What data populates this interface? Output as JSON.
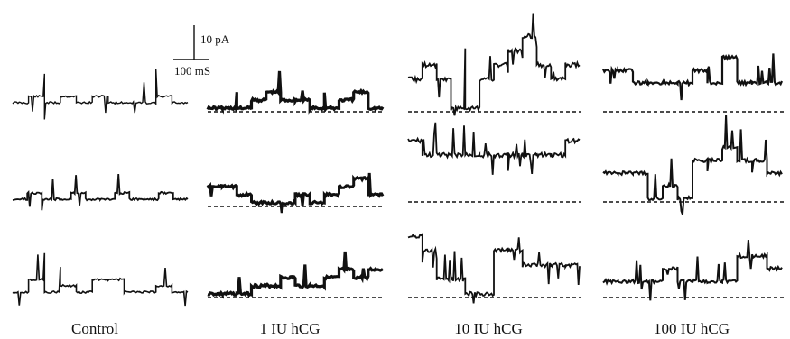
{
  "scale_bar": {
    "current_label": "10 pA",
    "time_label": "100 mS"
  },
  "columns": [
    {
      "id": "control",
      "label": "Control",
      "traces": [
        {
          "seed": 11,
          "levels": [
            0,
            1,
            0,
            1,
            0,
            1,
            0,
            0,
            0,
            1,
            0
          ],
          "spikes": 7,
          "noise": 1.2,
          "closed_line": false,
          "width": 1.4
        },
        {
          "seed": 23,
          "levels": [
            0,
            1,
            0,
            0,
            1,
            0,
            0,
            1,
            0,
            0,
            1,
            0
          ],
          "spikes": 6,
          "noise": 1.2,
          "closed_line": false,
          "width": 1.8
        },
        {
          "seed": 37,
          "levels": [
            0,
            2,
            0,
            1,
            0,
            2,
            2,
            0,
            0,
            1,
            0
          ],
          "spikes": 6,
          "noise": 1.2,
          "closed_line": false,
          "width": 1.6
        }
      ]
    },
    {
      "id": "iu1",
      "label": "1 IU hCG",
      "traces": [
        {
          "seed": 41,
          "levels": [
            0,
            0,
            0,
            1,
            2,
            1,
            1,
            0,
            0,
            1,
            2,
            0
          ],
          "spikes": 4,
          "noise": 1.6,
          "closed_line": true,
          "width": 3.2
        },
        {
          "seed": 53,
          "levels": [
            2,
            2,
            1,
            0,
            0,
            0,
            1,
            0,
            1,
            2,
            3,
            1
          ],
          "spikes": 4,
          "noise": 1.6,
          "closed_line": true,
          "width": 3.0
        },
        {
          "seed": 67,
          "levels": [
            0,
            0,
            0,
            1,
            1,
            2,
            1,
            1,
            2,
            3,
            2,
            3
          ],
          "spikes": 4,
          "noise": 1.6,
          "closed_line": true,
          "width": 3.2
        }
      ]
    },
    {
      "id": "iu10",
      "label": "10 IU hCG",
      "traces": [
        {
          "seed": 71,
          "levels": [
            2,
            3,
            2,
            0,
            0,
            2,
            3,
            4,
            5,
            3,
            2,
            3
          ],
          "spikes": 12,
          "noise": 2.4,
          "closed_line": true,
          "width": 1.8
        },
        {
          "seed": 83,
          "levels": [
            4,
            3,
            3,
            3,
            3,
            3,
            3,
            3,
            3,
            3,
            3,
            4
          ],
          "spikes": 14,
          "noise": 2.4,
          "closed_line": true,
          "width": 1.8
        },
        {
          "seed": 97,
          "levels": [
            4,
            3,
            1,
            1,
            0,
            0,
            3,
            3,
            2,
            2,
            2,
            2
          ],
          "spikes": 14,
          "noise": 2.4,
          "closed_line": true,
          "width": 1.8
        }
      ]
    },
    {
      "id": "iu100",
      "label": "100 IU hCG",
      "traces": [
        {
          "seed": 101,
          "levels": [
            3,
            3,
            2,
            2,
            2,
            2,
            3,
            2,
            4,
            2,
            2,
            2
          ],
          "spikes": 8,
          "noise": 2.0,
          "closed_line": true,
          "width": 2.2
        },
        {
          "seed": 113,
          "levels": [
            2,
            2,
            2,
            0,
            1,
            0,
            3,
            3,
            4,
            3,
            3,
            2
          ],
          "spikes": 10,
          "noise": 2.0,
          "closed_line": true,
          "width": 2.0
        },
        {
          "seed": 127,
          "levels": [
            1,
            1,
            1,
            1,
            2,
            1,
            1,
            1,
            1,
            3,
            3,
            2
          ],
          "spikes": 12,
          "noise": 2.0,
          "closed_line": true,
          "width": 2.0
        }
      ]
    }
  ]
}
